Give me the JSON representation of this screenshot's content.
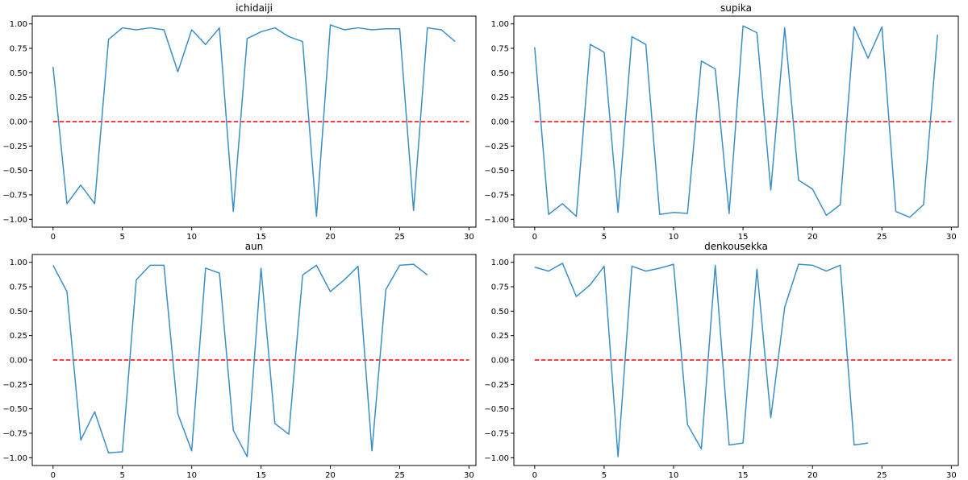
{
  "colors": {
    "series": "#3a8fc7",
    "reference": "#ff0000",
    "text": "#000000"
  },
  "chart_data": [
    {
      "type": "line",
      "title": "ichidaiji",
      "xlabel": "",
      "ylabel": "",
      "xlim": [
        -1.5,
        30.5
      ],
      "ylim": [
        -1.08,
        1.08
      ],
      "xticks": [
        0,
        5,
        10,
        15,
        20,
        25,
        30
      ],
      "yticks": [
        -1.0,
        -0.75,
        -0.5,
        -0.25,
        0.0,
        0.25,
        0.5,
        0.75,
        1.0
      ],
      "ytick_labels": [
        "−1.00",
        "−0.75",
        "−0.50",
        "−0.25",
        "0.00",
        "0.25",
        "0.50",
        "0.75",
        "1.00"
      ],
      "grid": false,
      "series": [
        {
          "x": [
            0,
            1,
            2,
            3,
            4,
            5,
            6,
            7,
            8,
            9,
            10,
            11,
            12,
            13,
            14,
            15,
            16,
            17,
            18,
            19,
            20,
            21,
            22,
            23,
            24,
            25,
            26,
            27,
            28,
            29
          ],
          "values": [
            0.56,
            -0.84,
            -0.65,
            -0.84,
            0.84,
            0.96,
            0.94,
            0.96,
            0.94,
            0.51,
            0.94,
            0.79,
            0.96,
            -0.92,
            0.85,
            0.92,
            0.96,
            0.87,
            0.82,
            -0.97,
            0.99,
            0.94,
            0.96,
            0.94,
            0.95,
            0.95,
            -0.91,
            0.96,
            0.94,
            0.82
          ]
        }
      ],
      "reference_line": {
        "y": 0.0,
        "x": [
          0,
          30
        ]
      }
    },
    {
      "type": "line",
      "title": "supika",
      "xlabel": "",
      "ylabel": "",
      "xlim": [
        -1.5,
        30.5
      ],
      "ylim": [
        -1.08,
        1.08
      ],
      "xticks": [
        0,
        5,
        10,
        15,
        20,
        25,
        30
      ],
      "yticks": [
        -1.0,
        -0.75,
        -0.5,
        -0.25,
        0.0,
        0.25,
        0.5,
        0.75,
        1.0
      ],
      "ytick_labels": [
        "−1.00",
        "−0.75",
        "−0.50",
        "−0.25",
        "0.00",
        "0.25",
        "0.50",
        "0.75",
        "1.00"
      ],
      "grid": false,
      "series": [
        {
          "x": [
            0,
            1,
            2,
            3,
            4,
            5,
            6,
            7,
            8,
            9,
            10,
            11,
            12,
            13,
            14,
            15,
            16,
            17,
            18,
            19,
            20,
            21,
            22,
            23,
            24,
            25,
            26,
            27,
            28,
            29
          ],
          "values": [
            0.76,
            -0.95,
            -0.84,
            -0.97,
            0.79,
            0.71,
            -0.93,
            0.87,
            0.79,
            -0.95,
            -0.93,
            -0.94,
            0.62,
            0.54,
            -0.94,
            0.98,
            0.91,
            -0.7,
            0.96,
            -0.6,
            -0.69,
            -0.96,
            -0.85,
            0.97,
            0.65,
            0.97,
            -0.92,
            -0.98,
            -0.85,
            0.89
          ]
        }
      ],
      "reference_line": {
        "y": 0.0,
        "x": [
          0,
          30
        ]
      }
    },
    {
      "type": "line",
      "title": "aun",
      "xlabel": "",
      "ylabel": "",
      "xlim": [
        -1.5,
        30.5
      ],
      "ylim": [
        -1.08,
        1.08
      ],
      "xticks": [
        0,
        5,
        10,
        15,
        20,
        25,
        30
      ],
      "yticks": [
        -1.0,
        -0.75,
        -0.5,
        -0.25,
        0.0,
        0.25,
        0.5,
        0.75,
        1.0
      ],
      "ytick_labels": [
        "−1.00",
        "−0.75",
        "−0.50",
        "−0.25",
        "0.00",
        "0.25",
        "0.50",
        "0.75",
        "1.00"
      ],
      "grid": false,
      "series": [
        {
          "x": [
            0,
            1,
            2,
            3,
            4,
            5,
            6,
            7,
            8,
            9,
            10,
            11,
            12,
            13,
            14,
            15,
            16,
            17,
            18,
            19,
            20,
            21,
            22,
            23,
            24,
            25,
            26,
            27
          ],
          "values": [
            0.97,
            0.7,
            -0.82,
            -0.53,
            -0.95,
            -0.94,
            0.82,
            0.97,
            0.97,
            -0.55,
            -0.93,
            0.94,
            0.89,
            -0.72,
            -0.99,
            0.94,
            -0.65,
            -0.76,
            0.87,
            0.97,
            0.7,
            0.82,
            0.96,
            -0.93,
            0.72,
            0.97,
            0.98,
            0.87
          ]
        }
      ],
      "reference_line": {
        "y": 0.0,
        "x": [
          0,
          30
        ]
      }
    },
    {
      "type": "line",
      "title": "denkousekka",
      "xlabel": "",
      "ylabel": "",
      "xlim": [
        -1.5,
        30.5
      ],
      "ylim": [
        -1.08,
        1.08
      ],
      "xticks": [
        0,
        5,
        10,
        15,
        20,
        25,
        30
      ],
      "yticks": [
        -1.0,
        -0.75,
        -0.5,
        -0.25,
        0.0,
        0.25,
        0.5,
        0.75,
        1.0
      ],
      "ytick_labels": [
        "−1.00",
        "−0.75",
        "−0.50",
        "−0.25",
        "0.00",
        "0.25",
        "0.50",
        "0.75",
        "1.00"
      ],
      "grid": false,
      "series": [
        {
          "x": [
            0,
            1,
            2,
            3,
            4,
            5,
            6,
            7,
            8,
            9,
            10,
            11,
            12,
            13,
            14,
            15,
            16,
            17,
            18,
            19,
            20,
            21,
            22,
            23,
            24
          ],
          "values": [
            0.95,
            0.91,
            0.99,
            0.65,
            0.77,
            0.96,
            -0.99,
            0.96,
            0.91,
            0.94,
            0.98,
            -0.66,
            -0.91,
            0.97,
            -0.87,
            -0.85,
            0.93,
            -0.59,
            0.54,
            0.98,
            0.97,
            0.91,
            0.97,
            -0.87,
            -0.85
          ]
        }
      ],
      "reference_line": {
        "y": 0.0,
        "x": [
          0,
          30
        ]
      }
    }
  ]
}
